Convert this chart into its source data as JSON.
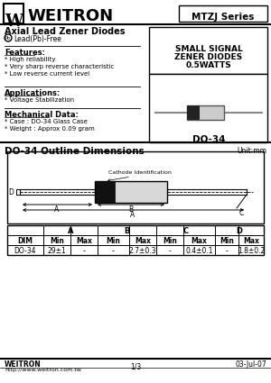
{
  "title_company": "WEITRON",
  "series": "MTZJ Series",
  "subtitle": "Axial Lead Zener Diodes",
  "lead_free": "Lead(Pb)-Free",
  "features_title": "Features:",
  "features": [
    "* High reliability",
    "* Very sharp reverse characteristic",
    "* Low reverse current level"
  ],
  "applications_title": "Applications:",
  "applications": [
    "* Voltage Stabilization"
  ],
  "mechanical_title": "Mechanical Data:",
  "mechanical": [
    "* Case : DO-34 Glass Case",
    "* Weight : Approx 0.09 gram"
  ],
  "small_signal_line1": "SMALL SIGNAL",
  "small_signal_line2": "ZENER DIODES",
  "small_signal_line3": "0.5WATTS",
  "package": "DO-34",
  "outline_title": "DO-34 Outline Dimensions",
  "unit": "Unit:mm",
  "cathode_label": "Cathode Identification",
  "col_headers": [
    "DIM",
    "Min",
    "Max",
    "Min",
    "Max",
    "Min",
    "Max",
    "Min",
    "Max"
  ],
  "row_DO34": [
    "DO-34",
    "29±1",
    "-",
    "-",
    "2.7±0.3",
    "-",
    "0.4±0.1",
    "-",
    "1.8±0.2"
  ],
  "footer_company": "WEITRON",
  "footer_url": "http://www.weitron.com.tw",
  "footer_page": "1/3",
  "footer_date": "03-Jul-07",
  "bg_color": "#ffffff",
  "text_color": "#000000"
}
